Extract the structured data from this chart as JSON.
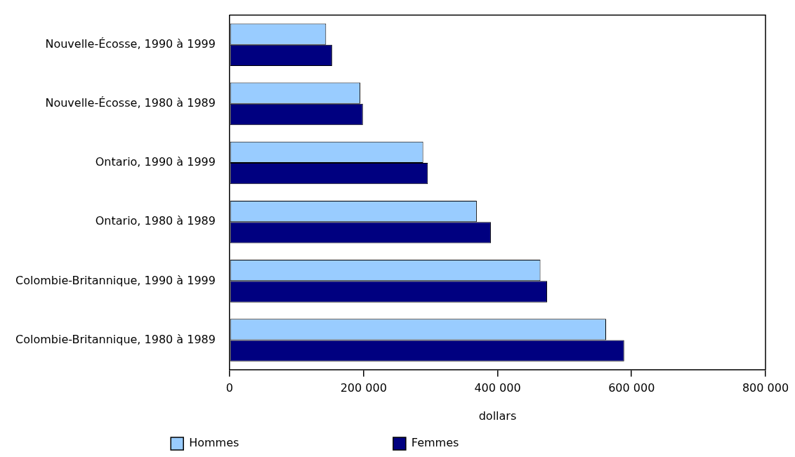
{
  "chart_data": {
    "type": "bar",
    "orientation": "horizontal",
    "xlabel": "dollars",
    "categories": [
      "Nouvelle-Écosse, 1990 à 1999",
      "Nouvelle-Écosse, 1980 à 1989",
      "Ontario, 1990 à 1999",
      "Ontario, 1980 à 1989",
      "Colombie-Britannique, 1990 à 1999",
      "Colombie-Britannique, 1980 à 1989"
    ],
    "series": [
      {
        "name": "Hommes",
        "color": "#99ccff",
        "values": [
          144000,
          195000,
          289000,
          369000,
          464000,
          562000
        ]
      },
      {
        "name": "Femmes",
        "color": "#000080",
        "values": [
          153000,
          199000,
          296000,
          390000,
          474000,
          589000
        ]
      }
    ],
    "xlim": [
      0,
      800000
    ],
    "xticks": [
      0,
      {
        "value": 200000,
        "label": "200 000"
      },
      {
        "value": 400000,
        "label": "400 000"
      },
      {
        "value": 600000,
        "label": "600 000"
      },
      {
        "value": 800000,
        "label": "800 000"
      }
    ],
    "grid": false,
    "legend": "bottom"
  }
}
